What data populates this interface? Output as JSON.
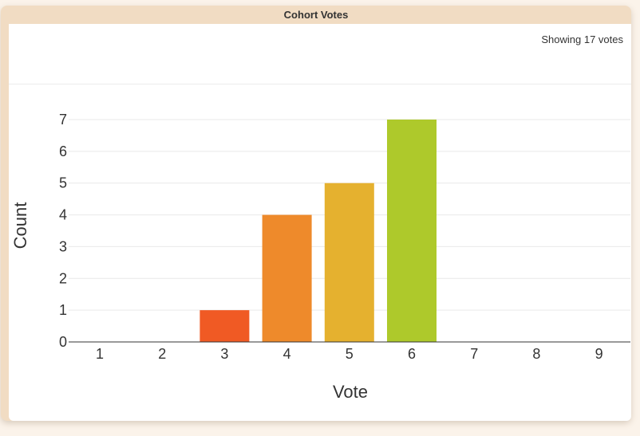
{
  "panel": {
    "title": "Cohort Votes",
    "vote_summary": "Showing 17 votes"
  },
  "chart_data": {
    "type": "bar",
    "categories": [
      "1",
      "2",
      "3",
      "4",
      "5",
      "6",
      "7",
      "8",
      "9"
    ],
    "values": [
      0,
      0,
      1,
      4,
      5,
      7,
      0,
      0,
      0
    ],
    "colors": [
      "#f05a24",
      "#f05a24",
      "#f05a24",
      "#ee8a2b",
      "#e5b12f",
      "#aec92b",
      "#aec92b",
      "#aec92b",
      "#aec92b"
    ],
    "xlabel": "Vote",
    "ylabel": "Count",
    "ylim": [
      0,
      7
    ],
    "yticks": [
      0,
      1,
      2,
      3,
      4,
      5,
      6,
      7
    ],
    "grid": true,
    "legend": "none"
  }
}
